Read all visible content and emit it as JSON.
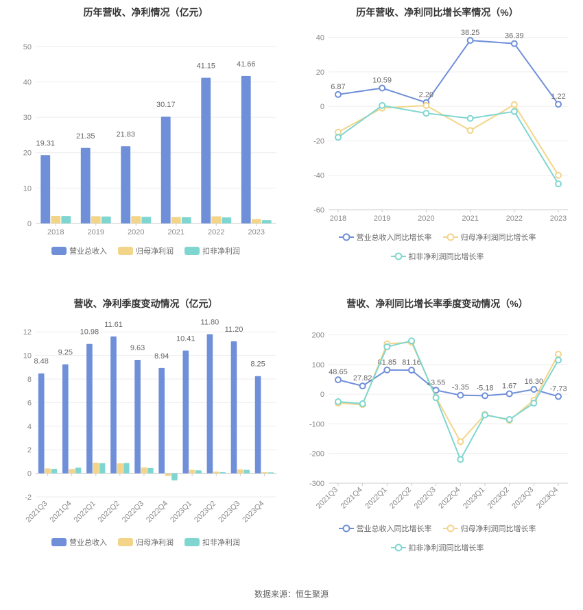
{
  "footer": "数据来源：恒生聚源",
  "colors": {
    "blue": "#6f8fd9",
    "yellow": "#f3d58a",
    "teal": "#7fd6d0",
    "axis": "#888888",
    "grid": "#eeeeee",
    "title": "#333333",
    "label": "#666666",
    "background": "#ffffff"
  },
  "chart1": {
    "title": "历年营收、净利情况（亿元）",
    "type": "bar",
    "categories": [
      "2018",
      "2019",
      "2020",
      "2021",
      "2022",
      "2023"
    ],
    "ylim": [
      0,
      55
    ],
    "yticks": [
      0,
      10,
      20,
      30,
      40,
      50
    ],
    "series": [
      {
        "name": "营业总收入",
        "color": "#6f8fd9",
        "values": [
          19.31,
          21.35,
          21.83,
          30.17,
          41.15,
          41.66
        ],
        "show_labels": true
      },
      {
        "name": "归母净利润",
        "color": "#f3d58a",
        "values": [
          2.14,
          2.06,
          2.07,
          1.78,
          2.01,
          1.2
        ],
        "show_labels": false
      },
      {
        "name": "扣非净利润",
        "color": "#7fd6d0",
        "values": [
          2.1,
          1.95,
          1.87,
          1.74,
          1.7,
          0.94
        ],
        "show_labels": false
      }
    ],
    "bar_group_width": 0.75,
    "bar_gap": 0.02,
    "title_fontsize": 14,
    "label_fontsize": 11
  },
  "chart2": {
    "title": "历年营收、净利同比增长率情况（%）",
    "type": "line",
    "categories": [
      "2018",
      "2019",
      "2020",
      "2021",
      "2022",
      "2023"
    ],
    "ylim": [
      -60,
      45
    ],
    "yticks": [
      -60,
      -40,
      -20,
      0,
      20,
      40
    ],
    "series": [
      {
        "name": "营业总收入同比增长率",
        "color": "#6f8fd9",
        "values": [
          6.87,
          10.59,
          2.2,
          38.25,
          36.39,
          1.22
        ],
        "show_labels": true
      },
      {
        "name": "归母净利润同比增长率",
        "color": "#f3d58a",
        "values": [
          -15.0,
          -1.0,
          0.5,
          -14.0,
          1.0,
          -40.0
        ],
        "show_labels": false
      },
      {
        "name": "扣非净利润同比增长率",
        "color": "#7fd6d0",
        "values": [
          -18.0,
          0.5,
          -4.0,
          -7.0,
          -3.0,
          -45.0
        ],
        "show_labels": false
      }
    ],
    "marker_radius": 4,
    "line_width": 2,
    "title_fontsize": 14,
    "label_fontsize": 11
  },
  "chart3": {
    "title": "营收、净利季度变动情况（亿元）",
    "type": "bar",
    "categories": [
      "2021Q3",
      "2021Q4",
      "2022Q1",
      "2022Q2",
      "2022Q3",
      "2022Q4",
      "2023Q1",
      "2023Q2",
      "2023Q3",
      "2023Q4"
    ],
    "ylim": [
      -2,
      13
    ],
    "yticks": [
      -2,
      0,
      2,
      4,
      6,
      8,
      10,
      12
    ],
    "series": [
      {
        "name": "营业总收入",
        "color": "#6f8fd9",
        "values": [
          8.48,
          9.25,
          10.98,
          11.61,
          9.63,
          8.94,
          10.41,
          11.8,
          11.2,
          8.25
        ],
        "show_labels": true
      },
      {
        "name": "归母净利润",
        "color": "#f3d58a",
        "values": [
          0.42,
          0.38,
          0.9,
          0.85,
          0.5,
          -0.22,
          0.3,
          0.15,
          0.33,
          0.1
        ],
        "show_labels": false
      },
      {
        "name": "扣非净利润",
        "color": "#7fd6d0",
        "values": [
          0.38,
          0.48,
          0.86,
          0.88,
          0.45,
          -0.6,
          0.25,
          0.1,
          0.3,
          0.08
        ],
        "show_labels": false
      }
    ],
    "bar_group_width": 0.78,
    "bar_gap": 0.02,
    "rotate_x_labels": -45,
    "title_fontsize": 14,
    "label_fontsize": 11
  },
  "chart4": {
    "title": "营收、净利同比增长率季度变动情况（%）",
    "type": "line",
    "categories": [
      "2021Q3",
      "2021Q4",
      "2022Q1",
      "2022Q2",
      "2022Q3",
      "2022Q4",
      "2023Q1",
      "2023Q2",
      "2023Q3",
      "2023Q4"
    ],
    "ylim": [
      -300,
      250
    ],
    "yticks": [
      -300,
      -200,
      -100,
      0,
      100,
      200
    ],
    "series": [
      {
        "name": "营业总收入同比增长率",
        "color": "#6f8fd9",
        "values": [
          48.65,
          27.82,
          81.85,
          81.16,
          13.55,
          -3.35,
          -5.18,
          1.67,
          16.3,
          -7.73
        ],
        "show_labels": true
      },
      {
        "name": "归母净利润同比增长率",
        "color": "#f3d58a",
        "values": [
          -30,
          -35,
          170,
          175,
          -10,
          -160,
          -68,
          -88,
          -20,
          135
        ],
        "show_labels": false
      },
      {
        "name": "扣非净利润同比增长率",
        "color": "#7fd6d0",
        "values": [
          -25,
          -32,
          160,
          180,
          -12,
          -220,
          -70,
          -85,
          -30,
          115
        ],
        "show_labels": false
      }
    ],
    "marker_radius": 4,
    "line_width": 2,
    "rotate_x_labels": -45,
    "title_fontsize": 14,
    "label_fontsize": 11
  }
}
